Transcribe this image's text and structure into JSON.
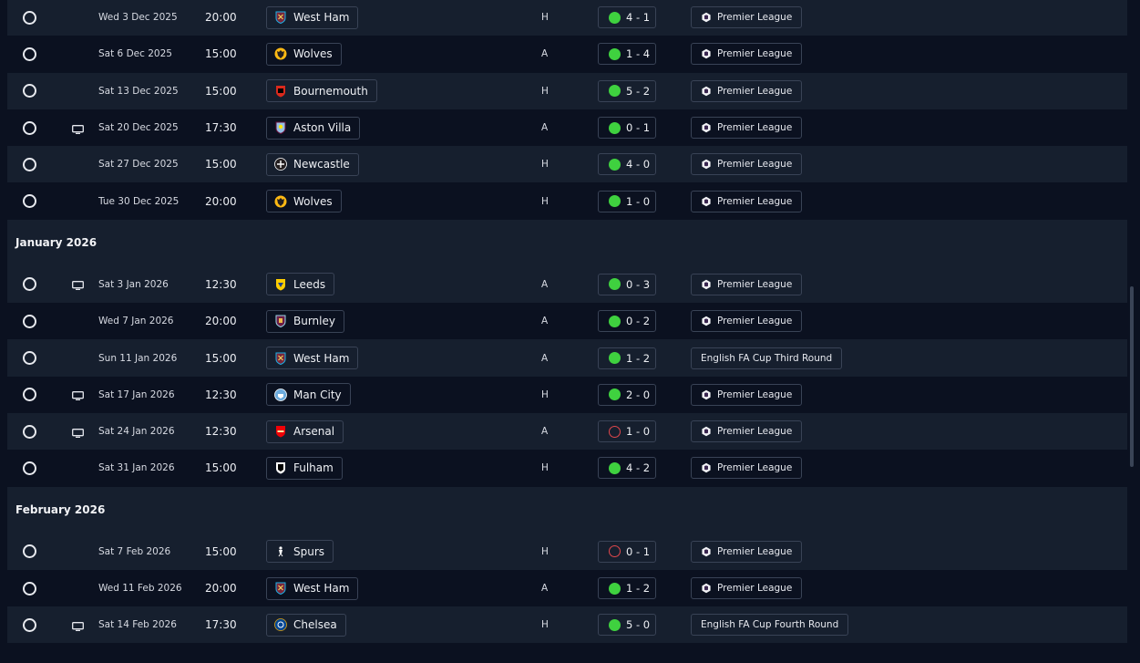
{
  "colors": {
    "win": "#3fd13f",
    "loss": "#e0474c",
    "row_alt": "#161f2e",
    "bg": "#0b1120"
  },
  "groups": [
    {
      "title": "",
      "rows": [
        {
          "tv": false,
          "date": "Wed 3 Dec 2025",
          "time": "20:00",
          "team": "West Ham",
          "crest": "west-ham",
          "venue": "H",
          "result": "win",
          "score": "4 - 1",
          "competition": "Premier League",
          "pl": true
        },
        {
          "tv": false,
          "date": "Sat 6 Dec 2025",
          "time": "15:00",
          "team": "Wolves",
          "crest": "wolves",
          "venue": "A",
          "result": "win",
          "score": "1 - 4",
          "competition": "Premier League",
          "pl": true
        },
        {
          "tv": false,
          "date": "Sat 13 Dec 2025",
          "time": "15:00",
          "team": "Bournemouth",
          "crest": "bournemouth",
          "venue": "H",
          "result": "win",
          "score": "5 - 2",
          "competition": "Premier League",
          "pl": true
        },
        {
          "tv": true,
          "date": "Sat 20 Dec 2025",
          "time": "17:30",
          "team": "Aston Villa",
          "crest": "aston-villa",
          "venue": "A",
          "result": "win",
          "score": "0 - 1",
          "competition": "Premier League",
          "pl": true
        },
        {
          "tv": false,
          "date": "Sat 27 Dec 2025",
          "time": "15:00",
          "team": "Newcastle",
          "crest": "newcastle",
          "venue": "H",
          "result": "win",
          "score": "4 - 0",
          "competition": "Premier League",
          "pl": true
        },
        {
          "tv": false,
          "date": "Tue 30 Dec 2025",
          "time": "20:00",
          "team": "Wolves",
          "crest": "wolves",
          "venue": "H",
          "result": "win",
          "score": "1 - 0",
          "competition": "Premier League",
          "pl": true
        }
      ]
    },
    {
      "title": "January 2026",
      "rows": [
        {
          "tv": true,
          "date": "Sat 3 Jan 2026",
          "time": "12:30",
          "team": "Leeds",
          "crest": "leeds",
          "venue": "A",
          "result": "win",
          "score": "0 - 3",
          "competition": "Premier League",
          "pl": true
        },
        {
          "tv": false,
          "date": "Wed 7 Jan 2026",
          "time": "20:00",
          "team": "Burnley",
          "crest": "burnley",
          "venue": "A",
          "result": "win",
          "score": "0 - 2",
          "competition": "Premier League",
          "pl": true
        },
        {
          "tv": false,
          "date": "Sun 11 Jan 2026",
          "time": "15:00",
          "team": "West Ham",
          "crest": "west-ham",
          "venue": "A",
          "result": "win",
          "score": "1 - 2",
          "competition": "English FA Cup Third Round",
          "pl": false
        },
        {
          "tv": true,
          "date": "Sat 17 Jan 2026",
          "time": "12:30",
          "team": "Man City",
          "crest": "man-city",
          "venue": "H",
          "result": "win",
          "score": "2 - 0",
          "competition": "Premier League",
          "pl": true
        },
        {
          "tv": true,
          "date": "Sat 24 Jan 2026",
          "time": "12:30",
          "team": "Arsenal",
          "crest": "arsenal",
          "venue": "A",
          "result": "loss",
          "score": "1 - 0",
          "competition": "Premier League",
          "pl": true
        },
        {
          "tv": false,
          "date": "Sat 31 Jan 2026",
          "time": "15:00",
          "team": "Fulham",
          "crest": "fulham",
          "venue": "H",
          "result": "win",
          "score": "4 - 2",
          "competition": "Premier League",
          "pl": true
        }
      ]
    },
    {
      "title": "February 2026",
      "rows": [
        {
          "tv": false,
          "date": "Sat 7 Feb 2026",
          "time": "15:00",
          "team": "Spurs",
          "crest": "spurs",
          "venue": "H",
          "result": "loss",
          "score": "0 - 1",
          "competition": "Premier League",
          "pl": true
        },
        {
          "tv": false,
          "date": "Wed 11 Feb 2026",
          "time": "20:00",
          "team": "West Ham",
          "crest": "west-ham",
          "venue": "A",
          "result": "win",
          "score": "1 - 2",
          "competition": "Premier League",
          "pl": true
        },
        {
          "tv": true,
          "date": "Sat 14 Feb 2026",
          "time": "17:30",
          "team": "Chelsea",
          "crest": "chelsea",
          "venue": "H",
          "result": "win",
          "score": "5 - 0",
          "competition": "English FA Cup Fourth Round",
          "pl": false
        }
      ]
    }
  ]
}
